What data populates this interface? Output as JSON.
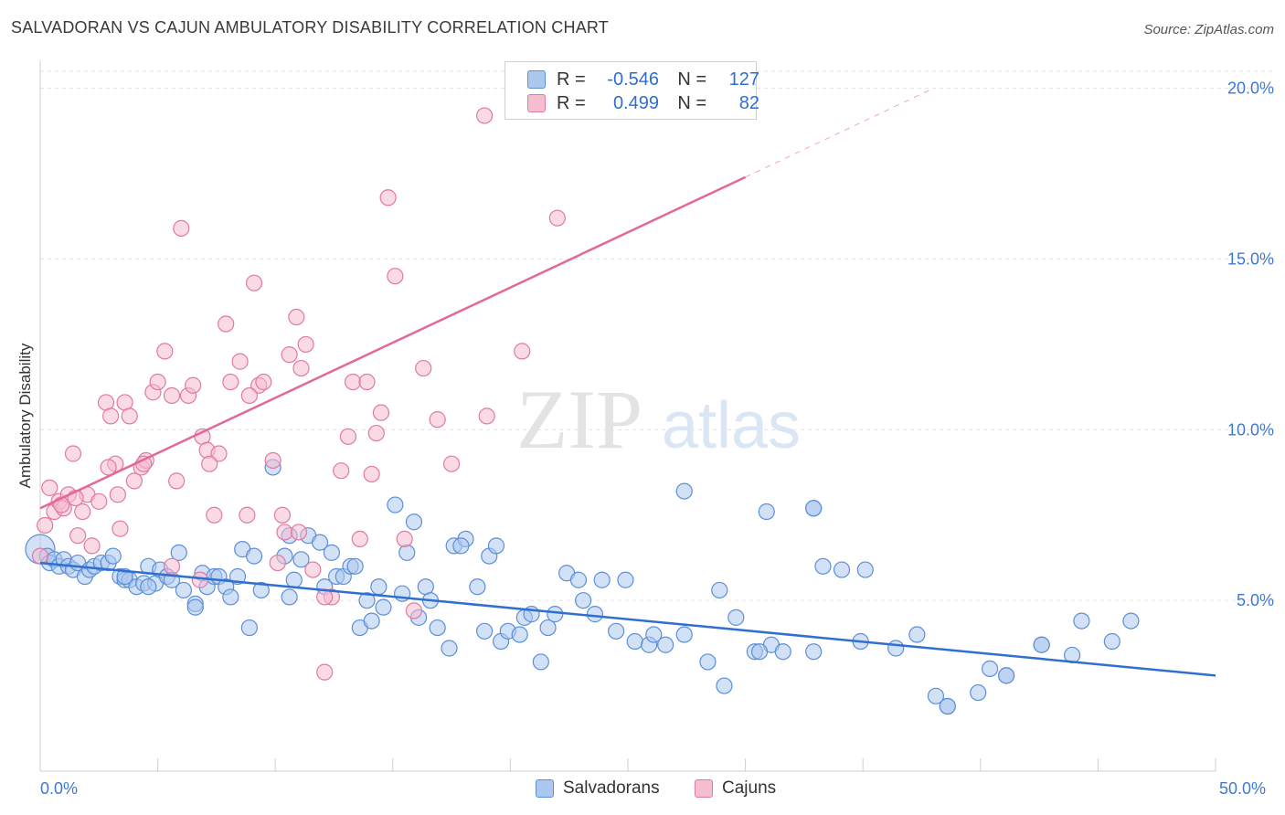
{
  "header": {
    "title": "SALVADORAN VS CAJUN AMBULATORY DISABILITY CORRELATION CHART",
    "source": "Source: ZipAtlas.com"
  },
  "legend": {
    "rows": [
      {
        "r_label": "R =",
        "r_value": "-0.546",
        "n_label": "N =",
        "n_value": "127",
        "fill": "#adc8ef",
        "stroke": "#5b8fd8"
      },
      {
        "r_label": "R =",
        "r_value": "0.499",
        "n_label": "N =",
        "n_value": "82",
        "fill": "#f6bcd0",
        "stroke": "#e07aa0"
      }
    ],
    "series": [
      {
        "name": "Salvadorans"
      },
      {
        "name": "Cajuns"
      }
    ]
  },
  "colors": {
    "salvadoran_fill": "#adc8ef",
    "salvadoran_stroke": "#5b8fd8",
    "salvadoran_line": "#2f6fd1",
    "cajun_fill": "#f6bcd0",
    "cajun_stroke": "#e07aa0",
    "cajun_line": "#e2679a",
    "tick_label": "#3f78d4",
    "grid": "#e3e3e3"
  },
  "chart_data": {
    "type": "scatter",
    "xlabel": "",
    "ylabel": "Ambulatory Disability",
    "xlim": [
      0,
      50
    ],
    "ylim": [
      0,
      20.5
    ],
    "x_tick_labels": [
      "0.0%",
      "50.0%"
    ],
    "y_ticks": [
      5,
      10,
      15,
      20
    ],
    "y_tick_labels": [
      "5.0%",
      "10.0%",
      "15.0%",
      "20.0%"
    ],
    "grid": "horizontal dashed",
    "watermark": {
      "zip": "ZIP",
      "atlas": "atlas"
    },
    "series": [
      {
        "name": "Salvadorans",
        "trend": {
          "x0": 0,
          "y0": 6.1,
          "x1": 50,
          "y1": 2.8
        },
        "points": [
          [
            0.0,
            6.5
          ],
          [
            0.3,
            6.3
          ],
          [
            0.4,
            6.1
          ],
          [
            0.6,
            6.2
          ],
          [
            0.8,
            6.0
          ],
          [
            1.0,
            6.2
          ],
          [
            1.2,
            6.0
          ],
          [
            1.4,
            5.9
          ],
          [
            1.6,
            6.1
          ],
          [
            1.9,
            5.7
          ],
          [
            2.1,
            5.9
          ],
          [
            2.3,
            6.0
          ],
          [
            2.6,
            6.1
          ],
          [
            2.9,
            6.1
          ],
          [
            3.1,
            6.3
          ],
          [
            3.4,
            5.7
          ],
          [
            3.6,
            5.6
          ],
          [
            3.8,
            5.6
          ],
          [
            4.1,
            5.4
          ],
          [
            4.4,
            5.5
          ],
          [
            4.6,
            6.0
          ],
          [
            4.9,
            5.5
          ],
          [
            5.1,
            5.9
          ],
          [
            5.4,
            5.7
          ],
          [
            5.6,
            5.6
          ],
          [
            5.9,
            6.4
          ],
          [
            6.1,
            5.3
          ],
          [
            6.6,
            4.9
          ],
          [
            6.9,
            5.8
          ],
          [
            7.1,
            5.4
          ],
          [
            7.4,
            5.7
          ],
          [
            7.6,
            5.7
          ],
          [
            7.9,
            5.4
          ],
          [
            8.1,
            5.1
          ],
          [
            8.4,
            5.7
          ],
          [
            8.6,
            6.5
          ],
          [
            8.9,
            4.2
          ],
          [
            9.1,
            6.3
          ],
          [
            9.9,
            8.9
          ],
          [
            10.4,
            6.3
          ],
          [
            10.6,
            5.1
          ],
          [
            10.8,
            5.6
          ],
          [
            11.1,
            6.2
          ],
          [
            11.4,
            6.9
          ],
          [
            11.9,
            6.7
          ],
          [
            12.1,
            5.4
          ],
          [
            12.6,
            5.7
          ],
          [
            12.9,
            5.7
          ],
          [
            13.2,
            6.0
          ],
          [
            13.6,
            4.2
          ],
          [
            13.9,
            5.0
          ],
          [
            14.1,
            4.4
          ],
          [
            14.4,
            5.4
          ],
          [
            14.6,
            4.8
          ],
          [
            15.1,
            7.8
          ],
          [
            15.4,
            5.2
          ],
          [
            15.6,
            6.4
          ],
          [
            15.9,
            7.3
          ],
          [
            16.1,
            4.5
          ],
          [
            16.4,
            5.4
          ],
          [
            16.6,
            5.0
          ],
          [
            16.9,
            4.2
          ],
          [
            17.4,
            3.6
          ],
          [
            17.6,
            6.6
          ],
          [
            18.1,
            6.8
          ],
          [
            18.6,
            5.4
          ],
          [
            18.9,
            4.1
          ],
          [
            19.1,
            6.3
          ],
          [
            19.6,
            3.8
          ],
          [
            19.9,
            4.1
          ],
          [
            20.6,
            4.5
          ],
          [
            20.9,
            4.6
          ],
          [
            21.3,
            3.2
          ],
          [
            21.6,
            4.2
          ],
          [
            21.9,
            4.6
          ],
          [
            22.4,
            5.8
          ],
          [
            22.9,
            5.6
          ],
          [
            23.1,
            5.0
          ],
          [
            23.6,
            4.6
          ],
          [
            23.9,
            5.6
          ],
          [
            24.5,
            4.1
          ],
          [
            24.9,
            5.6
          ],
          [
            25.3,
            3.8
          ],
          [
            25.9,
            3.7
          ],
          [
            26.1,
            4.0
          ],
          [
            26.6,
            3.7
          ],
          [
            27.4,
            8.2
          ],
          [
            28.4,
            3.2
          ],
          [
            28.9,
            5.3
          ],
          [
            29.1,
            2.5
          ],
          [
            29.6,
            4.5
          ],
          [
            30.4,
            3.5
          ],
          [
            30.9,
            7.6
          ],
          [
            31.1,
            3.7
          ],
          [
            31.6,
            3.5
          ],
          [
            32.9,
            7.7
          ],
          [
            32.9,
            3.5
          ],
          [
            32.9,
            7.7
          ],
          [
            33.3,
            6.0
          ],
          [
            34.1,
            5.9
          ],
          [
            34.9,
            3.8
          ],
          [
            35.1,
            5.9
          ],
          [
            36.4,
            3.6
          ],
          [
            37.3,
            4.0
          ],
          [
            38.1,
            2.2
          ],
          [
            38.6,
            1.9
          ],
          [
            39.9,
            2.3
          ],
          [
            40.4,
            3.0
          ],
          [
            41.1,
            2.8
          ],
          [
            42.6,
            3.7
          ],
          [
            43.9,
            3.4
          ],
          [
            44.3,
            4.4
          ],
          [
            45.6,
            3.8
          ],
          [
            46.4,
            4.4
          ],
          [
            38.6,
            1.9
          ],
          [
            42.6,
            3.7
          ],
          [
            41.1,
            2.8
          ],
          [
            6.6,
            4.8
          ],
          [
            4.6,
            5.4
          ],
          [
            3.6,
            5.7
          ],
          [
            9.4,
            5.3
          ],
          [
            10.6,
            6.9
          ],
          [
            12.4,
            6.4
          ],
          [
            13.4,
            6.0
          ],
          [
            20.4,
            4.0
          ],
          [
            19.4,
            6.6
          ],
          [
            17.9,
            6.6
          ],
          [
            27.4,
            4.0
          ],
          [
            30.6,
            3.5
          ]
        ]
      },
      {
        "name": "Cajuns",
        "trend": {
          "x0": 0,
          "y0": 7.7,
          "x1": 30,
          "y1": 17.4
        },
        "trend_extension": {
          "x0": 30,
          "y0": 17.4,
          "x1": 38,
          "y1": 20.0
        },
        "points": [
          [
            0.0,
            6.3
          ],
          [
            0.2,
            7.2
          ],
          [
            0.4,
            8.3
          ],
          [
            0.6,
            7.6
          ],
          [
            0.8,
            7.9
          ],
          [
            1.0,
            7.7
          ],
          [
            1.2,
            8.1
          ],
          [
            1.4,
            9.3
          ],
          [
            1.6,
            6.9
          ],
          [
            1.8,
            7.6
          ],
          [
            2.0,
            8.1
          ],
          [
            2.2,
            6.6
          ],
          [
            2.5,
            7.9
          ],
          [
            2.8,
            10.8
          ],
          [
            3.0,
            10.4
          ],
          [
            3.2,
            9.0
          ],
          [
            3.4,
            7.1
          ],
          [
            3.6,
            10.8
          ],
          [
            3.8,
            10.4
          ],
          [
            4.0,
            8.5
          ],
          [
            4.3,
            8.9
          ],
          [
            4.5,
            9.1
          ],
          [
            4.8,
            11.1
          ],
          [
            5.0,
            11.4
          ],
          [
            5.3,
            12.3
          ],
          [
            5.6,
            11.0
          ],
          [
            5.8,
            8.5
          ],
          [
            6.0,
            15.9
          ],
          [
            6.3,
            11.0
          ],
          [
            6.5,
            11.3
          ],
          [
            6.9,
            9.8
          ],
          [
            7.1,
            9.4
          ],
          [
            7.4,
            7.5
          ],
          [
            7.6,
            9.3
          ],
          [
            7.9,
            13.1
          ],
          [
            8.1,
            11.4
          ],
          [
            8.5,
            12.0
          ],
          [
            8.8,
            7.5
          ],
          [
            9.1,
            14.3
          ],
          [
            9.3,
            11.3
          ],
          [
            9.5,
            11.4
          ],
          [
            10.1,
            6.1
          ],
          [
            10.4,
            7.0
          ],
          [
            10.6,
            12.2
          ],
          [
            10.9,
            13.3
          ],
          [
            11.1,
            11.8
          ],
          [
            11.3,
            12.5
          ],
          [
            11.6,
            5.9
          ],
          [
            12.1,
            2.9
          ],
          [
            12.4,
            5.1
          ],
          [
            12.8,
            8.8
          ],
          [
            13.1,
            9.8
          ],
          [
            13.3,
            11.4
          ],
          [
            13.9,
            11.4
          ],
          [
            14.1,
            8.7
          ],
          [
            14.3,
            9.9
          ],
          [
            14.5,
            10.5
          ],
          [
            14.8,
            16.8
          ],
          [
            15.1,
            14.5
          ],
          [
            15.5,
            6.8
          ],
          [
            15.9,
            4.7
          ],
          [
            16.3,
            11.8
          ],
          [
            16.9,
            10.3
          ],
          [
            17.5,
            9.0
          ],
          [
            18.9,
            19.2
          ],
          [
            19.0,
            10.4
          ],
          [
            20.5,
            12.3
          ],
          [
            22.0,
            16.2
          ],
          [
            11.0,
            7.0
          ],
          [
            9.9,
            9.1
          ],
          [
            6.8,
            5.6
          ],
          [
            5.6,
            6.0
          ],
          [
            3.3,
            8.1
          ],
          [
            4.4,
            9.0
          ],
          [
            2.9,
            8.9
          ],
          [
            1.5,
            8.0
          ],
          [
            0.9,
            7.8
          ],
          [
            12.1,
            5.1
          ],
          [
            13.6,
            6.8
          ],
          [
            10.3,
            7.5
          ],
          [
            8.9,
            11.0
          ],
          [
            7.2,
            9.0
          ]
        ]
      }
    ]
  }
}
